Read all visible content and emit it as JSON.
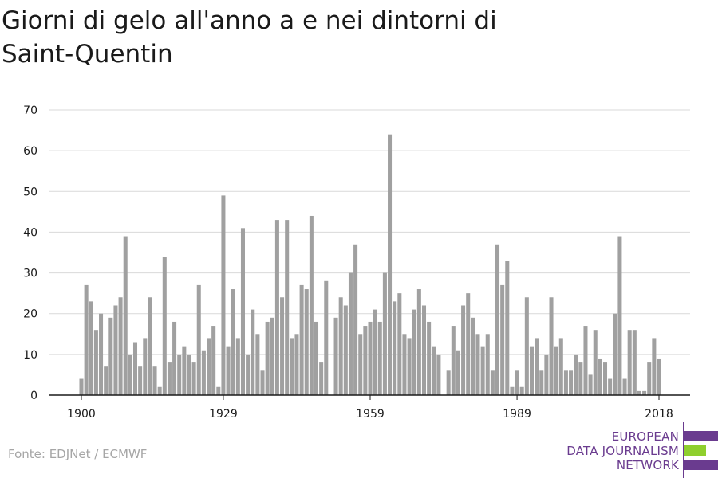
{
  "title": "Giorni di gelo all'anno a e nei dintorni di Saint-Quentin",
  "source": "Fonte: EDJNet / ECMWF",
  "logo": {
    "line1": "EUROPEAN",
    "line2": "DATA JOURNALISM",
    "line3": "NETWORK",
    "colors": [
      "#6a3b8f",
      "#8fcf2e",
      "#6a3b8f"
    ]
  },
  "colors": {
    "bar": "#a0a0a0",
    "grid": "#d9d9d9",
    "axis": "#1a1a1a",
    "text": "#1a1a1a"
  },
  "chart_data": {
    "type": "bar",
    "title": "Giorni di gelo all'anno a e nei dintorni di Saint-Quentin",
    "xlabel": "",
    "ylabel": "",
    "ylim": [
      0,
      70
    ],
    "yticks": [
      0,
      10,
      20,
      30,
      40,
      50,
      60,
      70
    ],
    "xticks": [
      1900,
      1929,
      1959,
      1989,
      2018
    ],
    "grid": true,
    "legend": "none",
    "x": [
      1900,
      1901,
      1902,
      1903,
      1904,
      1905,
      1906,
      1907,
      1908,
      1909,
      1910,
      1911,
      1912,
      1913,
      1914,
      1915,
      1916,
      1917,
      1918,
      1919,
      1920,
      1921,
      1922,
      1923,
      1924,
      1925,
      1926,
      1927,
      1928,
      1929,
      1930,
      1931,
      1932,
      1933,
      1934,
      1935,
      1936,
      1937,
      1938,
      1939,
      1940,
      1941,
      1942,
      1943,
      1944,
      1945,
      1946,
      1947,
      1948,
      1949,
      1950,
      1951,
      1952,
      1953,
      1954,
      1955,
      1956,
      1957,
      1958,
      1959,
      1960,
      1961,
      1962,
      1963,
      1964,
      1965,
      1966,
      1967,
      1968,
      1969,
      1970,
      1971,
      1972,
      1973,
      1974,
      1975,
      1976,
      1977,
      1978,
      1979,
      1980,
      1981,
      1982,
      1983,
      1984,
      1985,
      1986,
      1987,
      1988,
      1989,
      1990,
      1991,
      1992,
      1993,
      1994,
      1995,
      1996,
      1997,
      1998,
      1999,
      2000,
      2001,
      2002,
      2003,
      2004,
      2005,
      2006,
      2007,
      2008,
      2009,
      2010,
      2011,
      2012,
      2013,
      2014,
      2015,
      2016,
      2017,
      2018
    ],
    "values": [
      4,
      27,
      23,
      16,
      20,
      7,
      19,
      22,
      24,
      39,
      10,
      13,
      7,
      14,
      24,
      7,
      2,
      34,
      8,
      18,
      10,
      12,
      10,
      8,
      27,
      11,
      14,
      17,
      2,
      49,
      12,
      26,
      14,
      41,
      10,
      21,
      15,
      6,
      18,
      19,
      43,
      24,
      43,
      14,
      15,
      27,
      26,
      44,
      18,
      8,
      28,
      0,
      19,
      24,
      22,
      30,
      37,
      15,
      17,
      18,
      21,
      18,
      30,
      64,
      23,
      25,
      15,
      14,
      21,
      26,
      22,
      18,
      12,
      10,
      0,
      6,
      17,
      11,
      22,
      25,
      19,
      15,
      12,
      15,
      6,
      37,
      27,
      33,
      2,
      6,
      2,
      24,
      12,
      14,
      6,
      10,
      24,
      12,
      14,
      6,
      6,
      10,
      8,
      17,
      5,
      16,
      9,
      8,
      4,
      20,
      39,
      4,
      16,
      16,
      1,
      1,
      8,
      14,
      9
    ]
  }
}
